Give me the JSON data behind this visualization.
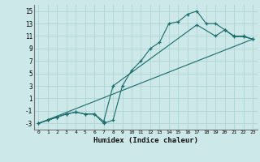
{
  "xlabel": "Humidex (Indice chaleur)",
  "bg_color": "#cce8e8",
  "grid_color": "#b0d4d4",
  "line_color": "#1a6b6b",
  "xlim": [
    -0.5,
    23.5
  ],
  "ylim": [
    -4,
    16
  ],
  "xticks": [
    0,
    1,
    2,
    3,
    4,
    5,
    6,
    7,
    8,
    9,
    10,
    11,
    12,
    13,
    14,
    15,
    16,
    17,
    18,
    19,
    20,
    21,
    22,
    23
  ],
  "yticks": [
    -3,
    -1,
    1,
    3,
    5,
    7,
    9,
    11,
    13,
    15
  ],
  "line1_x": [
    0,
    1,
    2,
    3,
    4,
    5,
    6,
    7,
    8,
    9,
    10,
    11,
    12,
    13,
    14,
    15,
    16,
    17,
    18,
    19,
    20,
    21,
    22,
    23
  ],
  "line1_y": [
    -3,
    -2.5,
    -2,
    -1.5,
    -1.2,
    -1.5,
    -1.5,
    -3,
    -2.5,
    3,
    5.5,
    7,
    9,
    10,
    13,
    13.3,
    14.5,
    15,
    13,
    13,
    12,
    11,
    11,
    10.5
  ],
  "line2_x": [
    0,
    1,
    2,
    3,
    4,
    5,
    6,
    7,
    8,
    17,
    19,
    20,
    21,
    22,
    23
  ],
  "line2_y": [
    -3,
    -2.5,
    -2,
    -1.5,
    -1.2,
    -1.5,
    -1.5,
    -2.7,
    3,
    12.8,
    11.0,
    12,
    10.9,
    10.9,
    10.5
  ],
  "line3_x": [
    0,
    23
  ],
  "line3_y": [
    -3,
    10.5
  ]
}
